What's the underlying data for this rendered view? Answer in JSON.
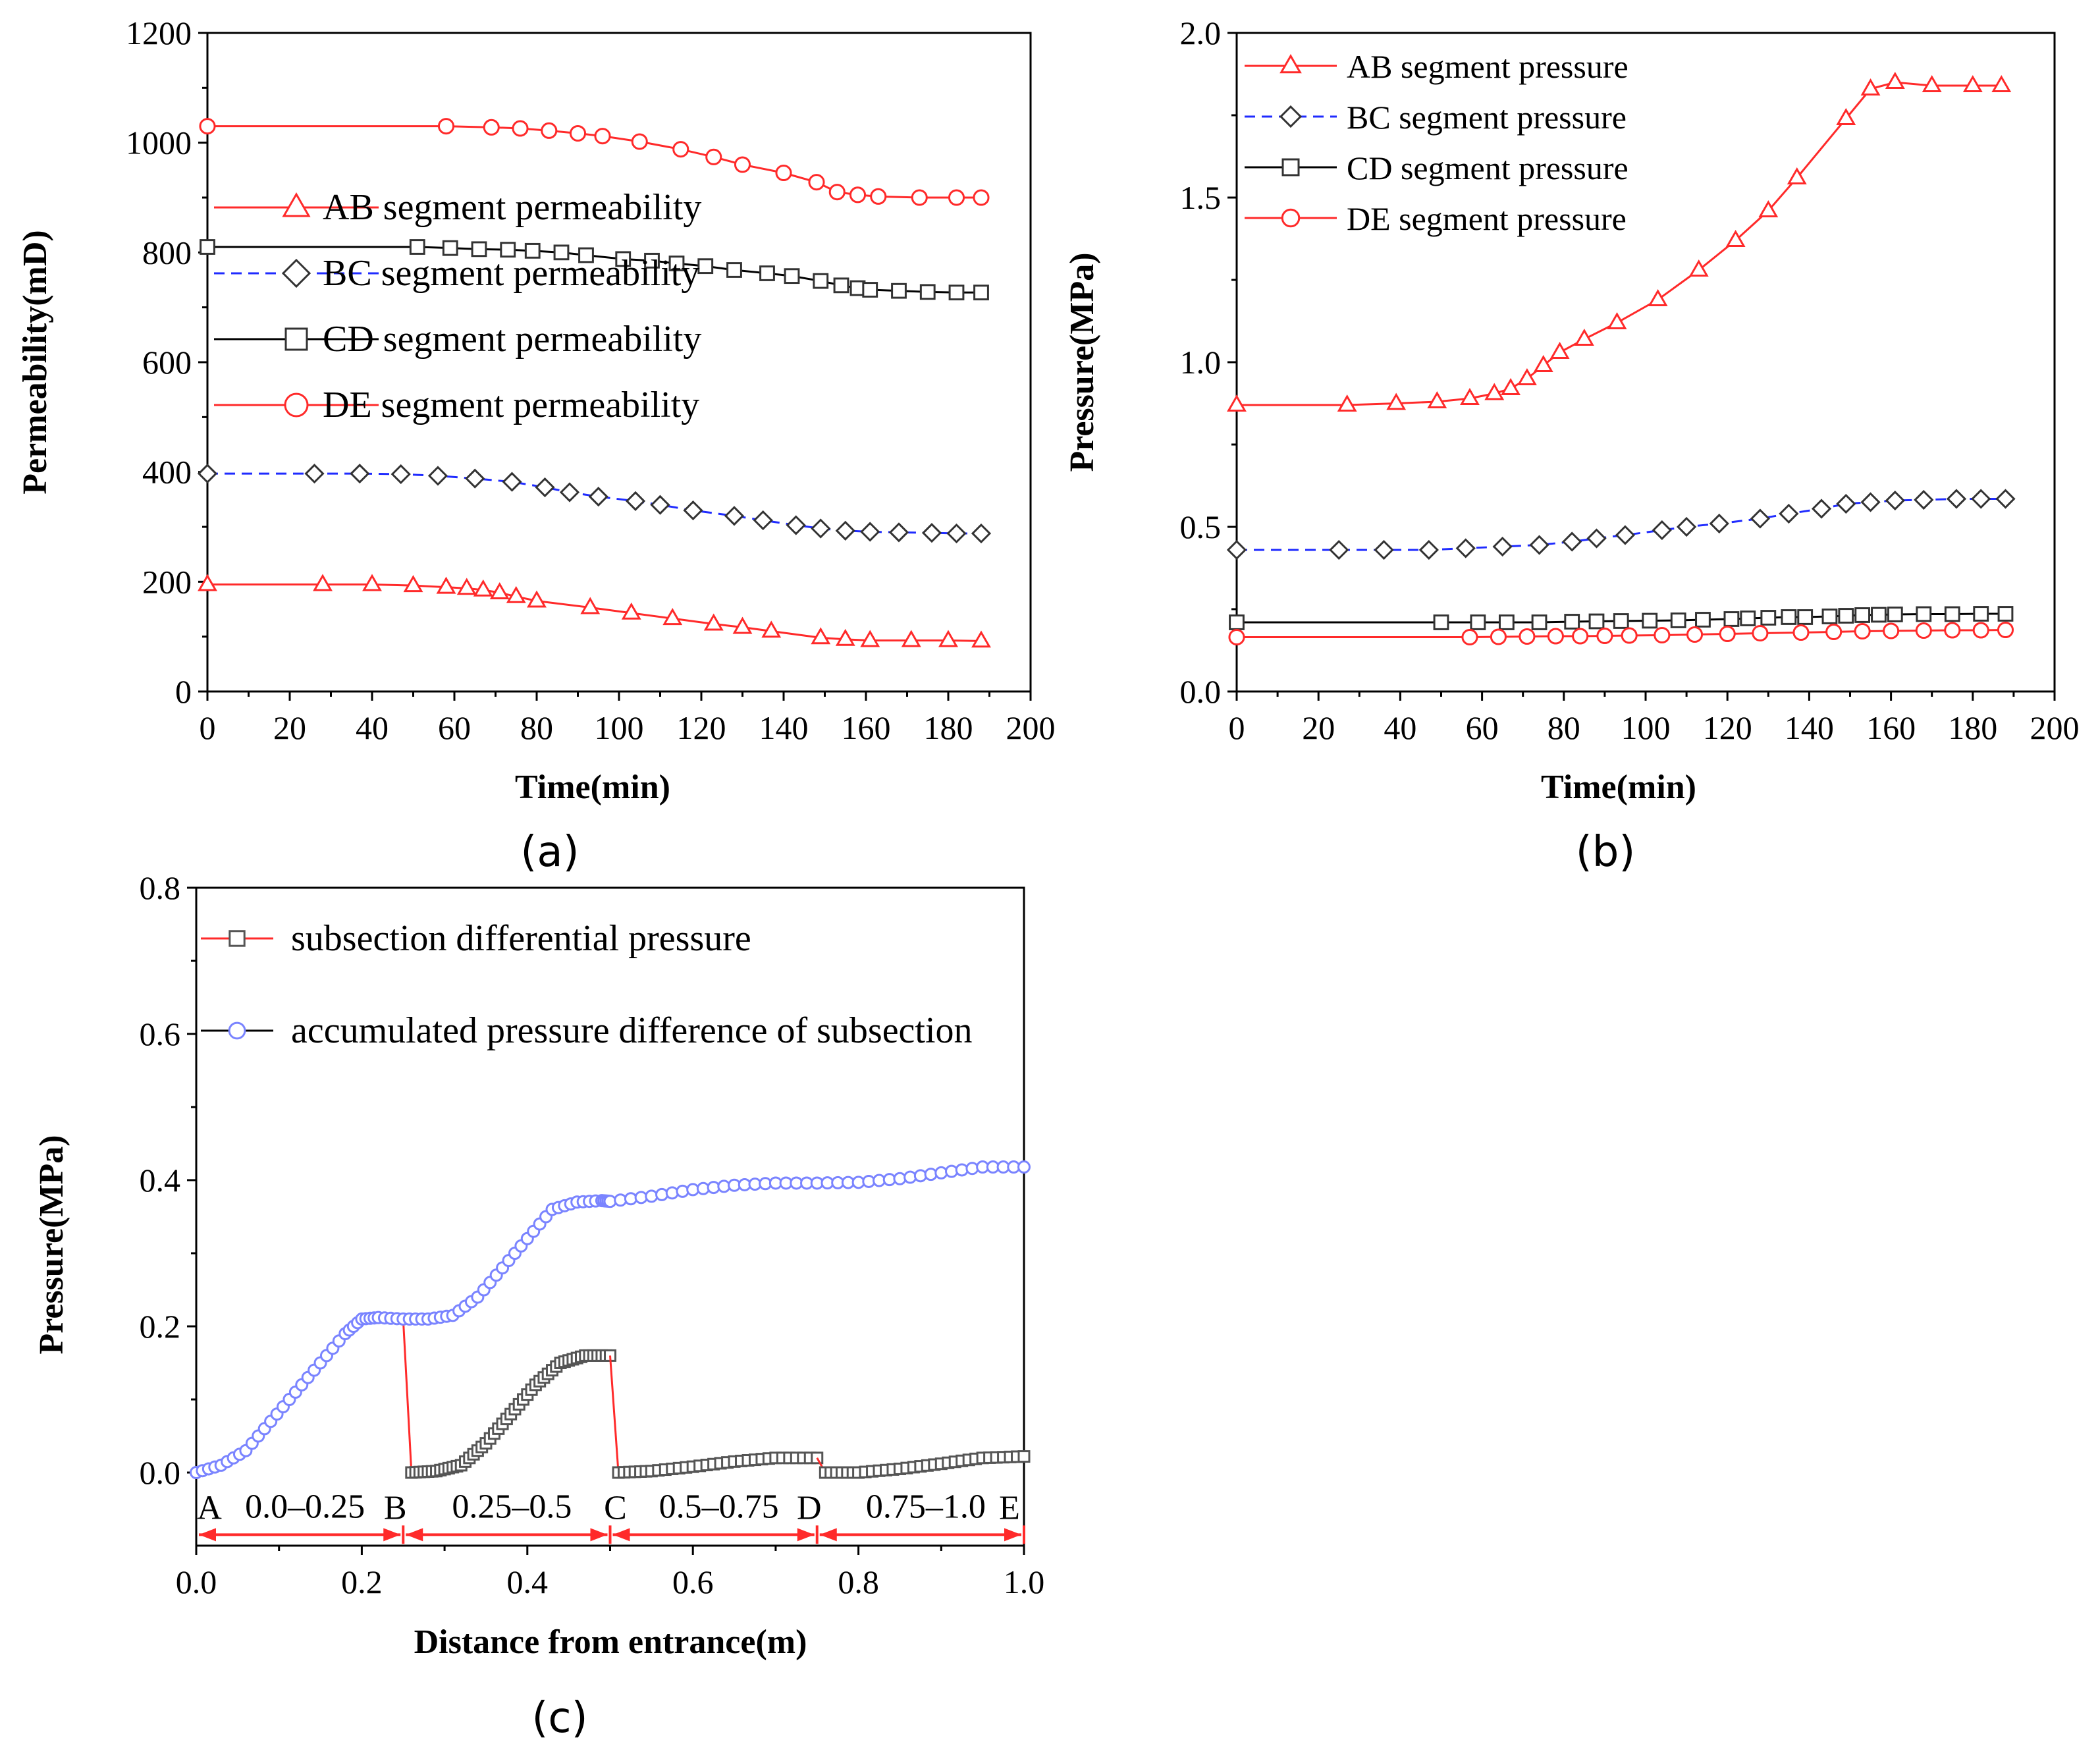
{
  "colors": {
    "red": "#ff2a2a",
    "blue": "#1f2bff",
    "black": "#000000",
    "gray": "#555555",
    "circle_blue": "#7a84ff"
  },
  "chart_data": [
    {
      "id": "a",
      "type": "line",
      "panel_label": "(a)",
      "xlabel": "Time(min)",
      "ylabel": "Permeability(mD)",
      "xlim": [
        0,
        200
      ],
      "ylim": [
        0,
        1200
      ],
      "xticks": [
        "0",
        "20",
        "40",
        "60",
        "80",
        "100",
        "120",
        "140",
        "160",
        "180",
        "200"
      ],
      "yticks": [
        "0",
        "200",
        "400",
        "600",
        "800",
        "1000",
        "1200"
      ],
      "legend_position": "upper-left",
      "series": [
        {
          "name": "AB segment permeability",
          "marker": "triangle",
          "color": "#ff2a2a",
          "line": "solid",
          "x": [
            0,
            28,
            40,
            50,
            58,
            63,
            67,
            71,
            75,
            80,
            93,
            103,
            113,
            123,
            130,
            137,
            149,
            155,
            161,
            171,
            180,
            188
          ],
          "y": [
            195,
            195,
            195,
            193,
            190,
            188,
            185,
            180,
            173,
            165,
            153,
            143,
            133,
            123,
            117,
            110,
            98,
            95,
            93,
            93,
            93,
            92
          ]
        },
        {
          "name": "BC segment permeability",
          "marker": "diamond",
          "color": "#1f2bff",
          "line": "dashed",
          "x": [
            0,
            26,
            37,
            47,
            56,
            65,
            74,
            82,
            88,
            95,
            104,
            110,
            118,
            128,
            135,
            143,
            149,
            155,
            161,
            168,
            176,
            182,
            188
          ],
          "y": [
            397,
            397,
            397,
            396,
            393,
            388,
            382,
            372,
            363,
            355,
            347,
            340,
            330,
            320,
            312,
            303,
            297,
            293,
            291,
            290,
            289,
            288,
            288
          ]
        },
        {
          "name": "CD segment permeability",
          "marker": "square",
          "color": "#000000",
          "line": "solid",
          "x": [
            0,
            51,
            59,
            66,
            73,
            79,
            86,
            92,
            101,
            108,
            114,
            121,
            128,
            136,
            142,
            149,
            154,
            158,
            161,
            168,
            175,
            182,
            188
          ],
          "y": [
            810,
            810,
            808,
            806,
            805,
            803,
            800,
            795,
            788,
            785,
            780,
            775,
            768,
            762,
            757,
            748,
            740,
            735,
            732,
            730,
            728,
            727,
            727
          ]
        },
        {
          "name": "DE segment permeability",
          "marker": "circle",
          "color": "#ff2a2a",
          "line": "solid",
          "x": [
            0,
            58,
            69,
            76,
            83,
            90,
            96,
            105,
            115,
            123,
            130,
            140,
            148,
            153,
            158,
            163,
            173,
            182,
            188
          ],
          "y": [
            1030,
            1030,
            1028,
            1026,
            1022,
            1017,
            1012,
            1002,
            988,
            974,
            960,
            945,
            928,
            910,
            905,
            902,
            900,
            900,
            900
          ]
        }
      ]
    },
    {
      "id": "b",
      "type": "line",
      "panel_label": "(b)",
      "xlabel": "Time(min)",
      "ylabel": "Pressure(MPa)",
      "xlim": [
        0,
        200
      ],
      "ylim": [
        0,
        2.0
      ],
      "xticks": [
        "0",
        "20",
        "40",
        "60",
        "80",
        "100",
        "120",
        "140",
        "160",
        "180",
        "200"
      ],
      "yticks": [
        "0.0",
        "0.5",
        "1.0",
        "1.5",
        "2.0"
      ],
      "legend_position": "upper-left",
      "series": [
        {
          "name": "AB segment pressure",
          "marker": "triangle",
          "color": "#ff2a2a",
          "line": "solid",
          "x": [
            0,
            27,
            39,
            49,
            57,
            63,
            67,
            71,
            75,
            79,
            85,
            93,
            103,
            113,
            122,
            130,
            137,
            149,
            155,
            161,
            170,
            180,
            187
          ],
          "y": [
            0.87,
            0.87,
            0.875,
            0.88,
            0.89,
            0.905,
            0.92,
            0.95,
            0.99,
            1.03,
            1.07,
            1.12,
            1.19,
            1.28,
            1.37,
            1.46,
            1.56,
            1.74,
            1.83,
            1.85,
            1.84,
            1.84,
            1.84
          ]
        },
        {
          "name": "BC segment pressure",
          "marker": "diamond",
          "color": "#1f2bff",
          "line": "dashed",
          "x": [
            0,
            25,
            36,
            47,
            56,
            65,
            74,
            82,
            88,
            95,
            104,
            110,
            118,
            128,
            135,
            143,
            149,
            155,
            161,
            168,
            176,
            182,
            188
          ],
          "y": [
            0.43,
            0.43,
            0.43,
            0.43,
            0.435,
            0.44,
            0.445,
            0.455,
            0.465,
            0.475,
            0.49,
            0.5,
            0.51,
            0.525,
            0.54,
            0.555,
            0.57,
            0.575,
            0.58,
            0.582,
            0.585,
            0.585,
            0.585
          ]
        },
        {
          "name": "CD segment pressure",
          "marker": "square",
          "color": "#000000",
          "line": "solid",
          "x": [
            0,
            50,
            59,
            66,
            74,
            82,
            88,
            94,
            101,
            108,
            114,
            121,
            125,
            130,
            135,
            139,
            145,
            149,
            153,
            157,
            161,
            168,
            175,
            182,
            188
          ],
          "y": [
            0.21,
            0.21,
            0.21,
            0.21,
            0.21,
            0.212,
            0.213,
            0.214,
            0.215,
            0.216,
            0.218,
            0.22,
            0.222,
            0.224,
            0.226,
            0.226,
            0.228,
            0.23,
            0.232,
            0.233,
            0.234,
            0.235,
            0.235,
            0.236,
            0.236
          ]
        },
        {
          "name": "DE segment pressure",
          "marker": "circle",
          "color": "#ff2a2a",
          "line": "solid",
          "x": [
            0,
            57,
            64,
            71,
            78,
            84,
            90,
            96,
            104,
            112,
            120,
            128,
            138,
            146,
            153,
            160,
            168,
            175,
            182,
            188
          ],
          "y": [
            0.165,
            0.165,
            0.166,
            0.167,
            0.168,
            0.168,
            0.169,
            0.17,
            0.171,
            0.173,
            0.175,
            0.177,
            0.179,
            0.181,
            0.183,
            0.184,
            0.185,
            0.186,
            0.186,
            0.187
          ]
        }
      ]
    },
    {
      "id": "c",
      "type": "line",
      "panel_label": "(c)",
      "xlabel": "Distance from entrance(m)",
      "ylabel": "Pressure(MPa)",
      "xlim": [
        0,
        1.0
      ],
      "ylim": [
        -0.1,
        0.8
      ],
      "xticks": [
        "0.0",
        "0.2",
        "0.4",
        "0.6",
        "0.8",
        "1.0"
      ],
      "yticks": [
        "0.0",
        "0.2",
        "0.4",
        "0.6",
        "0.8"
      ],
      "legend_position": "upper-left",
      "series": [
        {
          "name": "subsection differential pressure",
          "marker": "square",
          "color": "#555555",
          "line_color": "#ff2a2a",
          "segments": [
            {
              "x": [
                0.25,
                0.26
              ],
              "y": [
                0.21,
                0.0
              ]
            },
            {
              "x": [
                0.26,
                0.29,
                0.32,
                0.35,
                0.38,
                0.41,
                0.44,
                0.47,
                0.5
              ],
              "y": [
                0.0,
                0.002,
                0.01,
                0.04,
                0.08,
                0.12,
                0.15,
                0.16,
                0.16
              ]
            },
            {
              "x": [
                0.5,
                0.51
              ],
              "y": [
                0.16,
                0.0
              ]
            },
            {
              "x": [
                0.51,
                0.55,
                0.6,
                0.65,
                0.7,
                0.75
              ],
              "y": [
                0.0,
                0.002,
                0.008,
                0.015,
                0.02,
                0.02
              ]
            },
            {
              "x": [
                0.75,
                0.76
              ],
              "y": [
                0.02,
                0.0
              ]
            },
            {
              "x": [
                0.76,
                0.8,
                0.85,
                0.9,
                0.95,
                1.0
              ],
              "y": [
                0.0,
                0.0,
                0.005,
                0.012,
                0.02,
                0.022
              ]
            }
          ]
        },
        {
          "name": "accumulated pressure difference of subsection",
          "marker": "circle",
          "color": "#7a84ff",
          "line_color": "#000000",
          "x": [
            0.0,
            0.03,
            0.06,
            0.09,
            0.12,
            0.15,
            0.18,
            0.2,
            0.22,
            0.25,
            0.28,
            0.31,
            0.34,
            0.37,
            0.4,
            0.43,
            0.46,
            0.49,
            0.5,
            0.55,
            0.6,
            0.65,
            0.7,
            0.75,
            0.8,
            0.85,
            0.9,
            0.95,
            1.0
          ],
          "y": [
            0.0,
            0.01,
            0.03,
            0.07,
            0.11,
            0.15,
            0.19,
            0.21,
            0.212,
            0.21,
            0.21,
            0.215,
            0.24,
            0.28,
            0.32,
            0.36,
            0.37,
            0.372,
            0.371,
            0.378,
            0.387,
            0.393,
            0.396,
            0.396,
            0.397,
            0.402,
            0.41,
            0.418,
            0.418
          ]
        }
      ],
      "annotation_labels": [
        "A",
        "B",
        "C",
        "D",
        "E"
      ],
      "segment_labels": [
        "0.0–0.25",
        "0.25–0.5",
        "0.5–0.75",
        "0.75–1.0"
      ],
      "annotation_points": [
        0.0,
        0.25,
        0.5,
        0.75,
        1.0
      ],
      "annotation_y": -0.085
    }
  ]
}
